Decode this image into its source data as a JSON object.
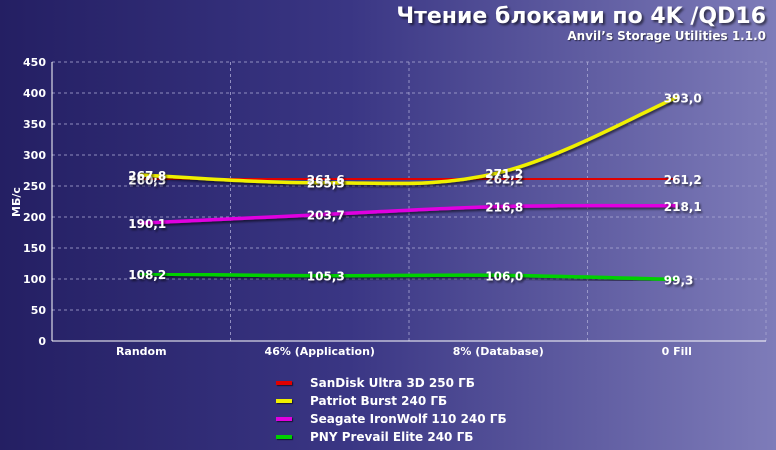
{
  "title": "Чтение блоками по 4K /QD16",
  "subtitle": "Anvil’s Storage Utilities 1.1.0",
  "chart_data": {
    "type": "line",
    "categories": [
      "Random",
      "46% (Application)",
      "8% (Database)",
      "0 Fill"
    ],
    "ylabel": "МБ/с",
    "xlabel": "",
    "ylim": [
      0,
      450
    ],
    "yticks": [
      0,
      50,
      100,
      150,
      200,
      250,
      300,
      350,
      400,
      450
    ],
    "grid": true,
    "legend_position": "bottom",
    "series": [
      {
        "name": "SanDisk Ultra 3D 250 ГБ",
        "color": "#e00000",
        "values": [
          260.3,
          261.6,
          262.2,
          261.2
        ],
        "labels": [
          "260,3",
          "261,6",
          "262,2",
          "261,2"
        ]
      },
      {
        "name": "Patriot Burst 240 ГБ",
        "color": "#f0f000",
        "values": [
          267.8,
          255.3,
          271.2,
          393.0
        ],
        "labels": [
          "267,8",
          "255,3",
          "271,2",
          "393,0"
        ]
      },
      {
        "name": "Seagate IronWolf 110 240 ГБ",
        "color": "#e000e0",
        "values": [
          190.1,
          203.7,
          216.8,
          218.1
        ],
        "labels": [
          "190,1",
          "203,7",
          "216,8",
          "218,1"
        ]
      },
      {
        "name": "PNY Prevail Elite 240 ГБ",
        "color": "#00d000",
        "values": [
          108.2,
          105.3,
          106.0,
          99.3
        ],
        "labels": [
          "108,2",
          "105,3",
          "106,0",
          "99,3"
        ]
      }
    ]
  }
}
